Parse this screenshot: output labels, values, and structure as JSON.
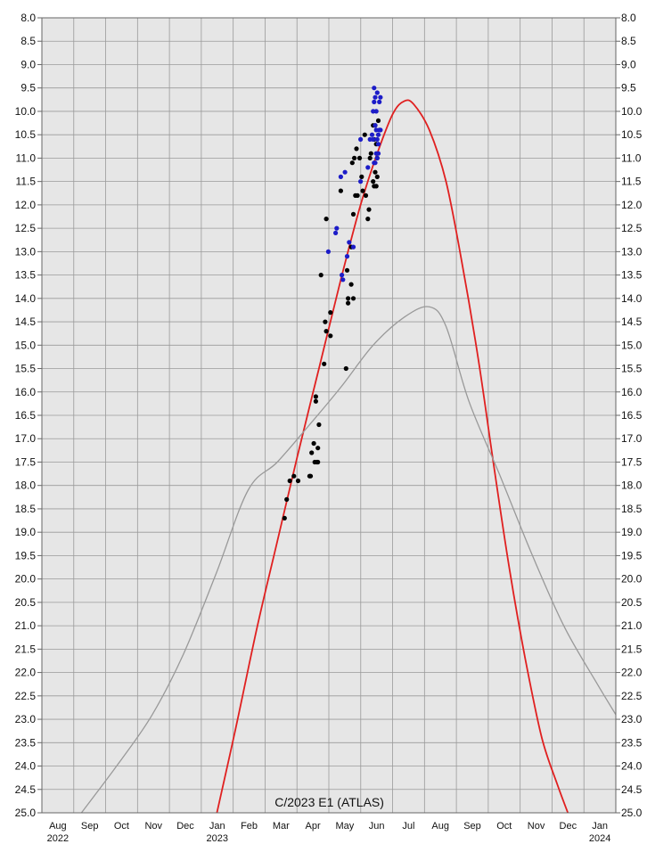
{
  "chart_data": {
    "type": "scatter",
    "title": "",
    "xlabel": "",
    "ylabel": "",
    "annotation": "C/2023 E1 (ATLAS)",
    "grid": true,
    "y_inverted": true,
    "ylim": [
      8.0,
      25.0
    ],
    "y_ticks": [
      "8.0",
      "8.5",
      "9.0",
      "9.5",
      "10.0",
      "10.5",
      "11.0",
      "11.5",
      "12.0",
      "12.5",
      "13.0",
      "13.5",
      "14.0",
      "14.5",
      "15.0",
      "15.5",
      "16.0",
      "16.5",
      "17.0",
      "17.5",
      "18.0",
      "18.5",
      "19.0",
      "19.5",
      "20.0",
      "20.5",
      "21.0",
      "21.5",
      "22.0",
      "22.5",
      "23.0",
      "23.5",
      "24.0",
      "24.5",
      "25.0"
    ],
    "x_ticks": [
      {
        "month": "Aug",
        "year": "2022"
      },
      {
        "month": "Sep",
        "year": ""
      },
      {
        "month": "Oct",
        "year": ""
      },
      {
        "month": "Nov",
        "year": ""
      },
      {
        "month": "Dec",
        "year": ""
      },
      {
        "month": "Jan",
        "year": "2023"
      },
      {
        "month": "Feb",
        "year": ""
      },
      {
        "month": "Mar",
        "year": ""
      },
      {
        "month": "Apr",
        "year": ""
      },
      {
        "month": "May",
        "year": ""
      },
      {
        "month": "Jun",
        "year": ""
      },
      {
        "month": "Jul",
        "year": ""
      },
      {
        "month": "Aug",
        "year": ""
      },
      {
        "month": "Sep",
        "year": ""
      },
      {
        "month": "Oct",
        "year": ""
      },
      {
        "month": "Nov",
        "year": ""
      },
      {
        "month": "Dec",
        "year": ""
      },
      {
        "month": "Jan",
        "year": "2024"
      }
    ],
    "xlim": [
      "2022-07-18",
      "2024-01-20"
    ],
    "colors": {
      "predicted": "#e02020",
      "reference": "#999999",
      "visual": "#000000",
      "ccd": "#1c1cc8",
      "plot_bg": "#e6e6e6",
      "grid": "#9a9a9a"
    },
    "series": [
      {
        "key": "predicted",
        "type": "line",
        "points": [
          [
            "2023-01-02",
            25.0
          ],
          [
            "2023-01-20",
            23.2
          ],
          [
            "2023-02-10",
            21.0
          ],
          [
            "2023-03-01",
            19.2
          ],
          [
            "2023-03-20",
            17.4
          ],
          [
            "2023-04-10",
            15.5
          ],
          [
            "2023-05-01",
            13.6
          ],
          [
            "2023-05-20",
            12.0
          ],
          [
            "2023-06-05",
            10.9
          ],
          [
            "2023-06-20",
            10.05
          ],
          [
            "2023-07-01",
            9.78
          ],
          [
            "2023-07-10",
            9.85
          ],
          [
            "2023-07-25",
            10.4
          ],
          [
            "2023-08-10",
            11.5
          ],
          [
            "2023-08-25",
            13.2
          ],
          [
            "2023-09-10",
            15.3
          ],
          [
            "2023-09-25",
            17.6
          ],
          [
            "2023-10-10",
            19.8
          ],
          [
            "2023-10-25",
            21.7
          ],
          [
            "2023-11-10",
            23.4
          ],
          [
            "2023-11-25",
            24.4
          ],
          [
            "2023-12-05",
            25.0
          ]
        ]
      },
      {
        "key": "reference",
        "type": "line",
        "points": [
          [
            "2022-08-25",
            25.0
          ],
          [
            "2022-10-01",
            23.9
          ],
          [
            "2022-11-01",
            22.9
          ],
          [
            "2022-12-01",
            21.6
          ],
          [
            "2023-01-01",
            19.9
          ],
          [
            "2023-02-01",
            18.1
          ],
          [
            "2023-03-01",
            17.5
          ],
          [
            "2023-04-01",
            16.7
          ],
          [
            "2023-05-01",
            15.9
          ],
          [
            "2023-06-01",
            15.0
          ],
          [
            "2023-07-01",
            14.4
          ],
          [
            "2023-07-25",
            14.18
          ],
          [
            "2023-08-10",
            14.6
          ],
          [
            "2023-09-01",
            16.2
          ],
          [
            "2023-10-01",
            17.8
          ],
          [
            "2023-11-01",
            19.5
          ],
          [
            "2023-12-01",
            21.0
          ],
          [
            "2024-01-01",
            22.2
          ],
          [
            "2024-01-20",
            22.9
          ]
        ]
      },
      {
        "key": "visual",
        "type": "scatter",
        "points": [
          [
            "2023-03-08",
            18.7
          ],
          [
            "2023-03-10",
            18.3
          ],
          [
            "2023-03-13",
            17.9
          ],
          [
            "2023-03-17",
            17.8
          ],
          [
            "2023-03-21",
            17.9
          ],
          [
            "2023-04-01",
            17.8
          ],
          [
            "2023-04-02",
            17.8
          ],
          [
            "2023-04-03",
            17.3
          ],
          [
            "2023-04-05",
            17.1
          ],
          [
            "2023-04-06",
            17.5
          ],
          [
            "2023-04-08",
            17.5
          ],
          [
            "2023-04-09",
            17.2
          ],
          [
            "2023-04-09",
            17.5
          ],
          [
            "2023-04-07",
            16.2
          ],
          [
            "2023-04-07",
            16.1
          ],
          [
            "2023-04-10",
            16.7
          ],
          [
            "2023-04-15",
            15.4
          ],
          [
            "2023-04-16",
            14.5
          ],
          [
            "2023-04-17",
            14.7
          ],
          [
            "2023-04-21",
            14.3
          ],
          [
            "2023-04-21",
            14.8
          ],
          [
            "2023-04-12",
            13.5
          ],
          [
            "2023-04-17",
            12.3
          ],
          [
            "2023-05-01",
            11.7
          ],
          [
            "2023-05-06",
            15.5
          ],
          [
            "2023-05-07",
            13.4
          ],
          [
            "2023-05-08",
            14.0
          ],
          [
            "2023-05-08",
            14.1
          ],
          [
            "2023-05-11",
            13.7
          ],
          [
            "2023-05-13",
            14.0
          ],
          [
            "2023-05-11",
            12.9
          ],
          [
            "2023-05-13",
            12.2
          ],
          [
            "2023-05-15",
            11.8
          ],
          [
            "2023-05-17",
            11.8
          ],
          [
            "2023-05-12",
            11.1
          ],
          [
            "2023-05-14",
            11.0
          ],
          [
            "2023-05-16",
            10.8
          ],
          [
            "2023-05-19",
            11.0
          ],
          [
            "2023-05-21",
            11.4
          ],
          [
            "2023-05-22",
            11.7
          ],
          [
            "2023-05-25",
            11.8
          ],
          [
            "2023-05-24",
            10.5
          ],
          [
            "2023-05-27",
            12.3
          ],
          [
            "2023-05-28",
            12.1
          ],
          [
            "2023-05-29",
            11.0
          ],
          [
            "2023-06-01",
            11.5
          ],
          [
            "2023-06-02",
            11.6
          ],
          [
            "2023-06-03",
            11.3
          ],
          [
            "2023-06-04",
            11.6
          ],
          [
            "2023-06-05",
            11.4
          ],
          [
            "2023-05-30",
            10.9
          ],
          [
            "2023-06-01",
            10.3
          ],
          [
            "2023-06-02",
            10.6
          ],
          [
            "2023-06-03",
            10.3
          ],
          [
            "2023-06-04",
            10.7
          ],
          [
            "2023-06-05",
            11.0
          ],
          [
            "2023-06-06",
            10.2
          ]
        ]
      },
      {
        "key": "ccd",
        "type": "scatter",
        "points": [
          [
            "2023-04-19",
            13.0
          ],
          [
            "2023-04-26",
            12.6
          ],
          [
            "2023-04-27",
            12.5
          ],
          [
            "2023-05-01",
            11.4
          ],
          [
            "2023-05-02",
            13.5
          ],
          [
            "2023-05-03",
            13.6
          ],
          [
            "2023-05-05",
            11.3
          ],
          [
            "2023-05-07",
            13.1
          ],
          [
            "2023-05-09",
            12.8
          ],
          [
            "2023-05-13",
            12.9
          ],
          [
            "2023-05-20",
            11.5
          ],
          [
            "2023-05-20",
            10.6
          ],
          [
            "2023-05-27",
            11.2
          ],
          [
            "2023-05-29",
            10.6
          ],
          [
            "2023-05-31",
            10.5
          ],
          [
            "2023-06-01",
            10.0
          ],
          [
            "2023-06-02",
            9.5
          ],
          [
            "2023-06-02",
            9.8
          ],
          [
            "2023-06-03",
            10.3
          ],
          [
            "2023-06-03",
            9.7
          ],
          [
            "2023-06-04",
            10.9
          ],
          [
            "2023-06-04",
            10.0
          ],
          [
            "2023-06-05",
            9.6
          ],
          [
            "2023-06-05",
            10.6
          ],
          [
            "2023-06-06",
            10.7
          ],
          [
            "2023-06-06",
            10.9
          ],
          [
            "2023-06-07",
            9.8
          ],
          [
            "2023-06-07",
            10.4
          ],
          [
            "2023-06-08",
            9.7
          ],
          [
            "2023-06-08",
            10.4
          ],
          [
            "2023-06-03",
            11.1
          ],
          [
            "2023-06-05",
            11.0
          ],
          [
            "2023-06-01",
            10.6
          ],
          [
            "2023-06-02",
            11.1
          ],
          [
            "2023-06-04",
            10.4
          ],
          [
            "2023-06-06",
            10.5
          ]
        ]
      }
    ]
  }
}
